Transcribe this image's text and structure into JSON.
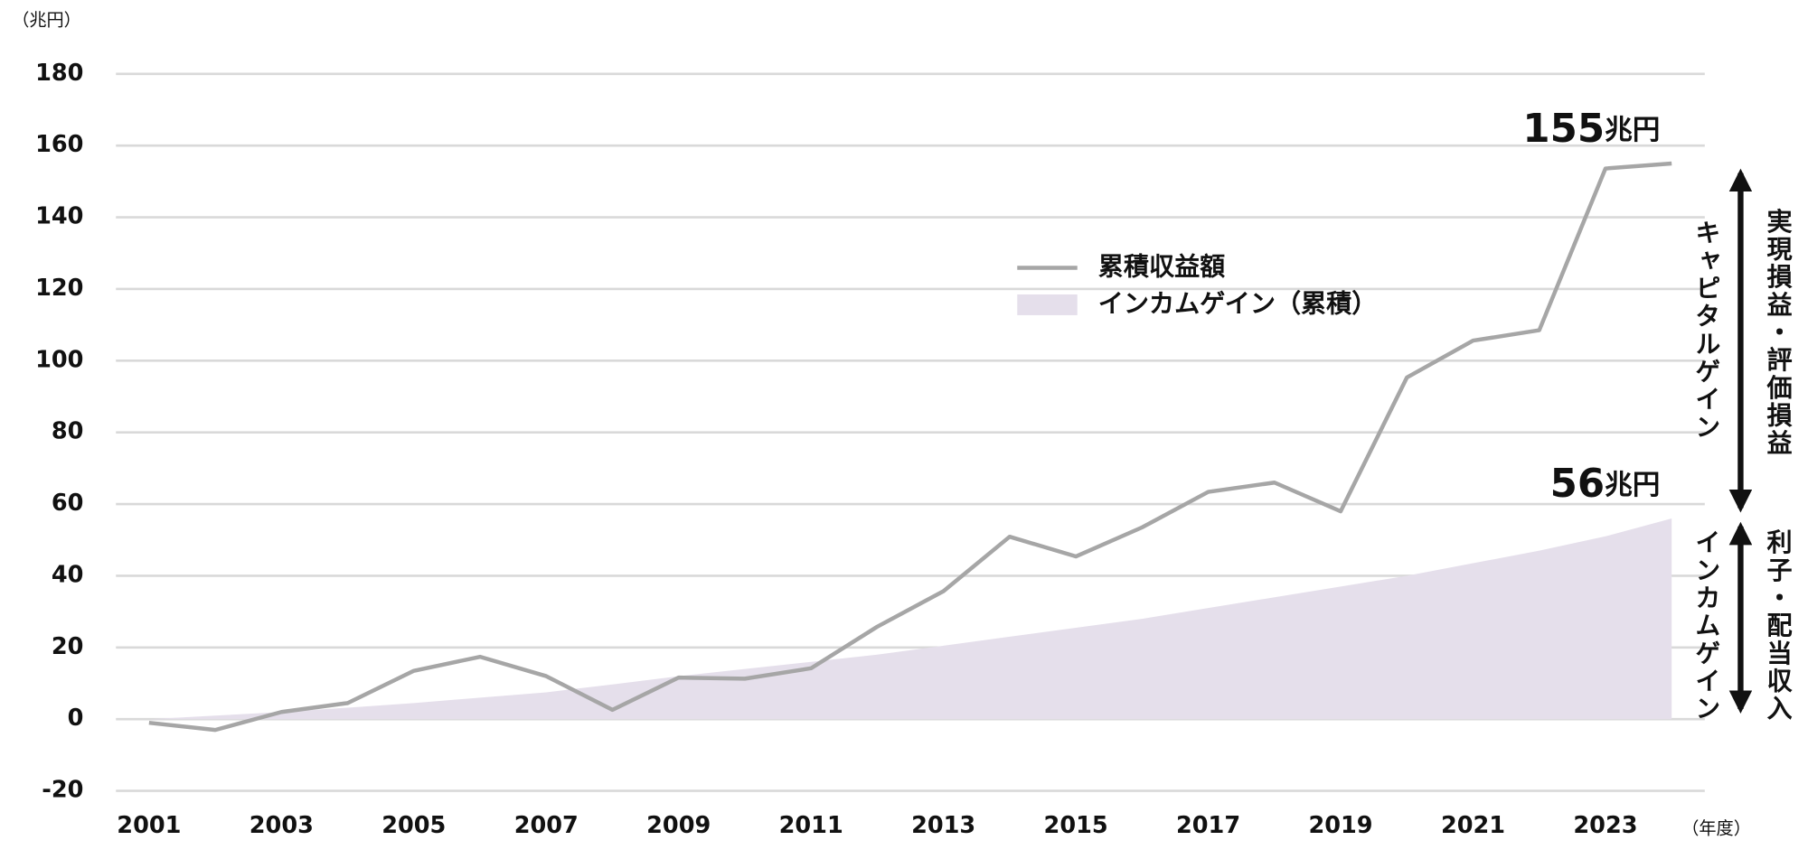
{
  "chart_data": {
    "type": "line",
    "y_unit": "（兆円）",
    "x_unit": "（年度）",
    "x": [
      2001,
      2002,
      2003,
      2004,
      2005,
      2006,
      2007,
      2008,
      2009,
      2010,
      2011,
      2012,
      2013,
      2014,
      2015,
      2016,
      2017,
      2018,
      2019,
      2020,
      2021,
      2022,
      2023,
      2024
    ],
    "xlim": [
      2000.5,
      2024.5
    ],
    "xticks": [
      2001,
      2003,
      2005,
      2007,
      2009,
      2011,
      2013,
      2015,
      2017,
      2019,
      2021,
      2023
    ],
    "ylim": [
      -20,
      180
    ],
    "yticks": [
      -20,
      0,
      20,
      40,
      60,
      80,
      100,
      120,
      140,
      160,
      180
    ],
    "grid": true,
    "series": [
      {
        "name": "累積収益額",
        "color": "#a6a6a6",
        "kind": "line",
        "values": [
          -1,
          -3,
          2,
          4.5,
          13.5,
          17.4,
          12,
          2.6,
          11.6,
          11.3,
          14.2,
          25.8,
          35.7,
          50.9,
          45.4,
          53.5,
          63.4,
          66,
          58,
          95.3,
          105.6,
          108.5,
          153.6,
          155
        ],
        "value_labels": [
          null,
          null,
          null,
          null,
          null,
          null,
          null,
          null,
          null,
          null,
          null,
          null,
          null,
          null,
          null,
          null,
          null,
          null,
          null,
          null,
          null,
          null,
          null,
          "155兆円"
        ]
      },
      {
        "name": "インカムゲイン（累積）",
        "color": "#e5dfeb",
        "kind": "area",
        "values": [
          0,
          1,
          2,
          3.2,
          4.5,
          6,
          7.5,
          9.7,
          12,
          14,
          16,
          18,
          20.5,
          23,
          25.5,
          28,
          31,
          34,
          37,
          40,
          43.5,
          47,
          51,
          56
        ],
        "value_labels": [
          null,
          null,
          null,
          null,
          null,
          null,
          null,
          null,
          null,
          null,
          null,
          null,
          null,
          null,
          null,
          null,
          null,
          null,
          null,
          null,
          null,
          null,
          null,
          "56兆円"
        ]
      }
    ],
    "side_labels": [
      "キャピタルゲイン",
      "実現損益・評価損益",
      "インカムゲイン",
      "利子・配当収入"
    ]
  }
}
